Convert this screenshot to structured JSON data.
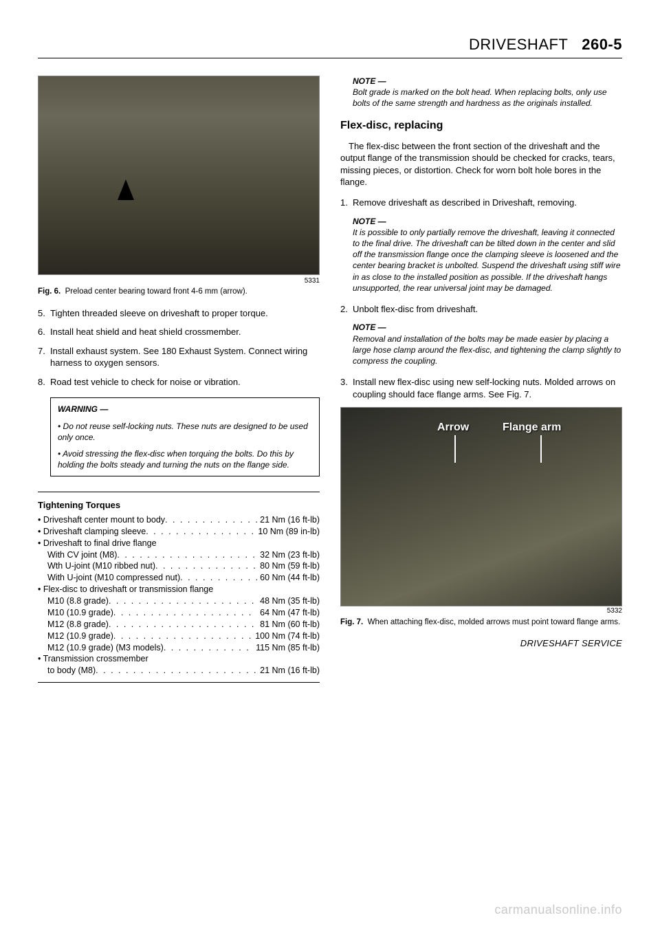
{
  "header": {
    "title": "DRIVESHAFT",
    "page": "260-5"
  },
  "left": {
    "fig6": {
      "imgnum": "5331",
      "caption_label": "Fig. 6.",
      "caption_text": "Preload center bearing toward front 4-6 mm (arrow)."
    },
    "steps": [
      {
        "n": "5.",
        "t": "Tighten threaded sleeve on driveshaft to proper torque."
      },
      {
        "n": "6.",
        "t": "Install heat shield and heat shield crossmember."
      },
      {
        "n": "7.",
        "t": "Install exhaust system. See 180 Exhaust System. Connect wiring harness to oxygen sensors."
      },
      {
        "n": "8.",
        "t": "Road test vehicle to check for noise or vibration."
      }
    ],
    "warning": {
      "title": "WARNING —",
      "b1": "• Do not reuse self-locking nuts. These nuts are designed to be used only once.",
      "b2": "• Avoid stressing the flex-disc when torquing the bolts. Do this by holding the bolts steady and turning the nuts on the flange side."
    },
    "torques": {
      "title": "Tightening Torques",
      "items": [
        {
          "label": "• Driveshaft center mount to body",
          "val": "21 Nm (16 ft-lb)",
          "sub": false
        },
        {
          "label": "• Driveshaft clamping sleeve",
          "val": "10 Nm (89 in-lb)",
          "sub": false
        },
        {
          "label": "• Driveshaft to final drive flange",
          "val": "",
          "sub": false
        },
        {
          "label": "With CV joint (M8)",
          "val": "32 Nm (23 ft-lb)",
          "sub": true
        },
        {
          "label": "Wth U-joint (M10 ribbed nut)",
          "val": "80 Nm (59 ft-lb)",
          "sub": true
        },
        {
          "label": "With U-joint (M10 compressed nut)",
          "val": "60 Nm (44 ft-lb)",
          "sub": true
        },
        {
          "label": "• Flex-disc to driveshaft or transmission flange",
          "val": "",
          "sub": false
        },
        {
          "label": "M10 (8.8 grade)",
          "val": "48 Nm (35 ft-lb)",
          "sub": true
        },
        {
          "label": "M10 (10.9 grade)",
          "val": "64 Nm (47 ft-lb)",
          "sub": true
        },
        {
          "label": "M12 (8.8 grade)",
          "val": "81 Nm (60 ft-lb)",
          "sub": true
        },
        {
          "label": "M12 (10.9 grade)",
          "val": "100 Nm (74 ft-lb)",
          "sub": true
        },
        {
          "label": "M12 (10.9 grade) (M3 models)",
          "val": "115 Nm (85 ft-lb)",
          "sub": true
        },
        {
          "label": "• Transmission crossmember",
          "val": "",
          "sub": false
        },
        {
          "label": "to body (M8)",
          "val": "21 Nm (16 ft-lb)",
          "sub": true
        }
      ]
    }
  },
  "right": {
    "note1": {
      "title": "NOTE —",
      "body": "Bolt grade is marked on the bolt head. When replacing bolts, only use bolts of the same strength and hardness as the originals installed."
    },
    "h2": "Flex-disc, replacing",
    "para1": "The flex-disc between the front section of the driveshaft and the output flange of the transmission should be checked for cracks, tears, missing pieces, or distortion. Check for worn bolt hole bores in the flange.",
    "step1": {
      "n": "1.",
      "t": "Remove driveshaft as described in Driveshaft, removing."
    },
    "note2": {
      "title": "NOTE —",
      "body": "It is possible to only partially remove the driveshaft, leaving it connected to the final drive. The driveshaft can be tilted down in the center and slid off the transmission flange once the clamping sleeve is loosened and the center bearing bracket is unbolted. Suspend the driveshaft using stiff wire in as close to the installed position as possible. If the driveshaft hangs unsupported, the rear universal joint may be damaged."
    },
    "step2": {
      "n": "2.",
      "t": "Unbolt flex-disc from driveshaft."
    },
    "note3": {
      "title": "NOTE —",
      "body": "Removal and installation of the bolts may be made easier by placing a large hose clamp around the flex-disc, and tightening the clamp slightly to compress the coupling."
    },
    "step3": {
      "n": "3.",
      "t": "Install new flex-disc using new self-locking nuts. Molded arrows on coupling should face flange arms. See Fig. 7."
    },
    "fig7": {
      "arrow_label": "Arrow",
      "flange_label": "Flange arm",
      "imgnum": "5332",
      "caption_label": "Fig. 7.",
      "caption_text": "When attaching flex-disc, molded arrows must point toward flange arms."
    },
    "footer": "DRIVESHAFT SERVICE"
  },
  "watermark": "carmanualsonline.info"
}
